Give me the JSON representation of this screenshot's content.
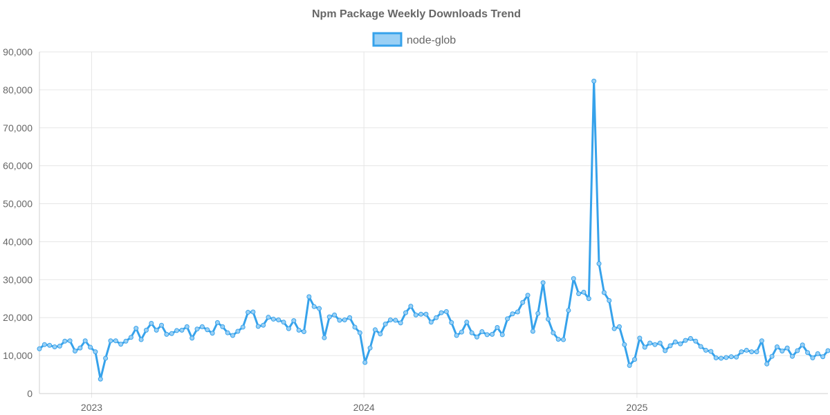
{
  "chart_data": {
    "type": "line",
    "title": "Npm Package Weekly Downloads Trend",
    "xlabel": "",
    "ylabel": "",
    "x_start": "2022-10-23",
    "x_end": "2025-09-14",
    "xlim": [
      "2022-10-23",
      "2025-09-14"
    ],
    "ylim": [
      0,
      90000
    ],
    "y_ticks": [
      0,
      10000,
      20000,
      30000,
      40000,
      50000,
      60000,
      70000,
      80000,
      90000
    ],
    "x_ticks": [
      {
        "date": "2023-01-01",
        "label": "2023"
      },
      {
        "date": "2024-01-01",
        "label": "2024"
      },
      {
        "date": "2025-01-01",
        "label": "2025"
      }
    ],
    "grid": true,
    "legend_position": "top",
    "series": [
      {
        "name": "node-glob",
        "color": "#36a2eb",
        "fill": "#9ad0f5",
        "values": [
          11800,
          12900,
          12700,
          12300,
          12500,
          13800,
          13900,
          11200,
          12000,
          13900,
          12200,
          11000,
          3800,
          9300,
          13900,
          13900,
          13000,
          13800,
          14800,
          17200,
          14200,
          16700,
          18500,
          16700,
          18000,
          15600,
          15800,
          16600,
          16700,
          17600,
          14600,
          17000,
          17600,
          16800,
          15900,
          18700,
          17600,
          16000,
          15300,
          16400,
          17500,
          21400,
          21500,
          17700,
          18000,
          20100,
          19600,
          19400,
          18800,
          17100,
          19200,
          16700,
          16300,
          25500,
          22900,
          22400,
          14700,
          20200,
          20700,
          19300,
          19400,
          20000,
          17500,
          16000,
          8200,
          12000,
          16800,
          15700,
          18300,
          19400,
          19300,
          18600,
          21300,
          23000,
          20700,
          20900,
          20900,
          18800,
          20000,
          21300,
          21600,
          18700,
          15300,
          16200,
          18800,
          16000,
          14900,
          16300,
          15500,
          15600,
          17400,
          15500,
          19700,
          21000,
          21500,
          24000,
          25900,
          16400,
          21100,
          29200,
          19600,
          16000,
          14300,
          14200,
          21900,
          30300,
          26300,
          26700,
          25000,
          82300,
          34200,
          26600,
          24500,
          17100,
          17600,
          12900,
          7400,
          9000,
          14600,
          12200,
          13300,
          12900,
          13300,
          11300,
          12600,
          13600,
          13100,
          14000,
          14500,
          13800,
          12400,
          11400,
          11100,
          9400,
          9300,
          9500,
          9700,
          9600,
          11000,
          11400,
          11000,
          11000,
          13900,
          7800,
          9800,
          12300,
          11200,
          12000,
          9800,
          11300,
          12800,
          10800,
          9400,
          10500,
          9700,
          11300
        ]
      }
    ]
  }
}
